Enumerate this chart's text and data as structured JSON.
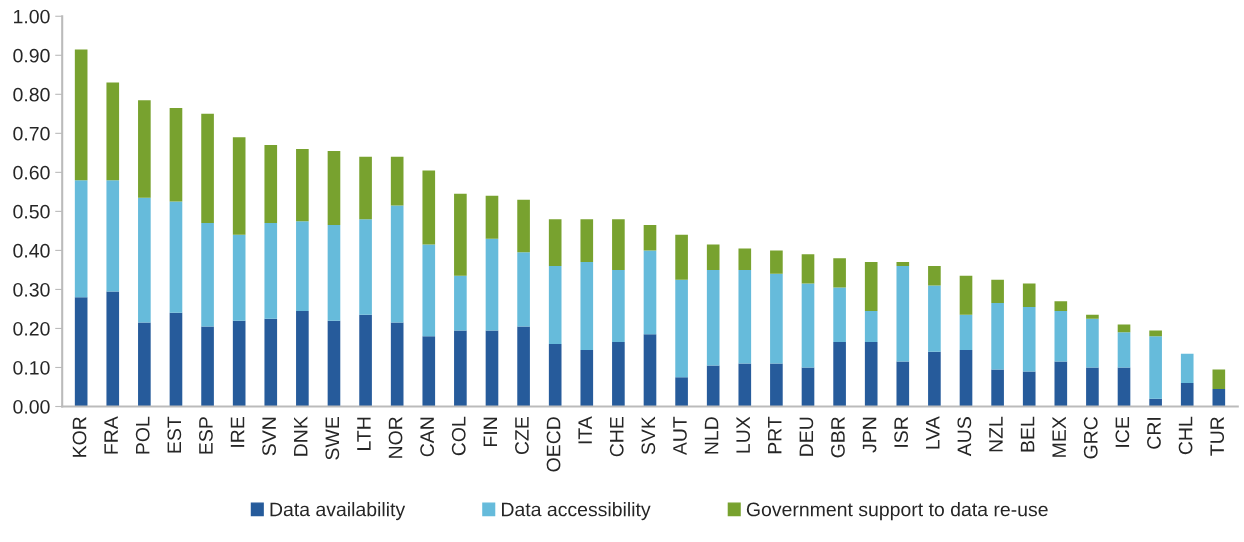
{
  "chart_data": {
    "type": "bar",
    "stacked": true,
    "categories": [
      "KOR",
      "FRA",
      "POL",
      "EST",
      "ESP",
      "IRE",
      "SVN",
      "DNK",
      "SWE",
      "LTH",
      "NOR",
      "CAN",
      "COL",
      "FIN",
      "CZE",
      "OECD",
      "ITA",
      "CHE",
      "SVK",
      "AUT",
      "NLD",
      "LUX",
      "PRT",
      "DEU",
      "GBR",
      "JPN",
      "ISR",
      "LVA",
      "AUS",
      "NZL",
      "BEL",
      "MEX",
      "GRC",
      "ICE",
      "CRI",
      "CHL",
      "TUR"
    ],
    "series": [
      {
        "name": "Data availability",
        "color": "#265b9b",
        "values": [
          0.28,
          0.295,
          0.215,
          0.24,
          0.205,
          0.22,
          0.225,
          0.245,
          0.22,
          0.235,
          0.215,
          0.18,
          0.195,
          0.195,
          0.205,
          0.16,
          0.145,
          0.165,
          0.185,
          0.075,
          0.105,
          0.11,
          0.11,
          0.1,
          0.165,
          0.165,
          0.115,
          0.14,
          0.145,
          0.095,
          0.09,
          0.115,
          0.1,
          0.1,
          0.02,
          0.06,
          0.045
        ]
      },
      {
        "name": "Data accessibility",
        "color": "#66bbdb",
        "values": [
          0.3,
          0.285,
          0.32,
          0.285,
          0.265,
          0.22,
          0.245,
          0.23,
          0.245,
          0.245,
          0.3,
          0.235,
          0.14,
          0.235,
          0.19,
          0.2,
          0.225,
          0.185,
          0.215,
          0.25,
          0.245,
          0.24,
          0.23,
          0.215,
          0.14,
          0.08,
          0.245,
          0.17,
          0.09,
          0.17,
          0.165,
          0.13,
          0.125,
          0.09,
          0.16,
          0.075,
          0
        ]
      },
      {
        "name": "Government support to data re-use",
        "color": "#78a22f",
        "values": [
          0.335,
          0.25,
          0.25,
          0.24,
          0.28,
          0.25,
          0.2,
          0.185,
          0.19,
          0.16,
          0.125,
          0.19,
          0.21,
          0.11,
          0.135,
          0.12,
          0.11,
          0.13,
          0.065,
          0.115,
          0.065,
          0.055,
          0.06,
          0.075,
          0.075,
          0.125,
          0.01,
          0.05,
          0.1,
          0.06,
          0.06,
          0.025,
          0.01,
          0.02,
          0.015,
          0,
          0.05
        ]
      }
    ],
    "ylim": [
      0,
      1.0
    ],
    "yticks": [
      {
        "value": 0,
        "label": "0.00"
      },
      {
        "value": 0.1,
        "label": "0.10"
      },
      {
        "value": 0.2,
        "label": "0.20"
      },
      {
        "value": 0.3,
        "label": "0.30"
      },
      {
        "value": 0.4,
        "label": "0.40"
      },
      {
        "value": 0.5,
        "label": "0.50"
      },
      {
        "value": 0.6,
        "label": "0.60"
      },
      {
        "value": 0.7,
        "label": "0.70"
      },
      {
        "value": 0.8,
        "label": "0.80"
      },
      {
        "value": 0.9,
        "label": "0.90"
      },
      {
        "value": 1.0,
        "label": "1.00"
      }
    ],
    "legend": "bottom"
  }
}
